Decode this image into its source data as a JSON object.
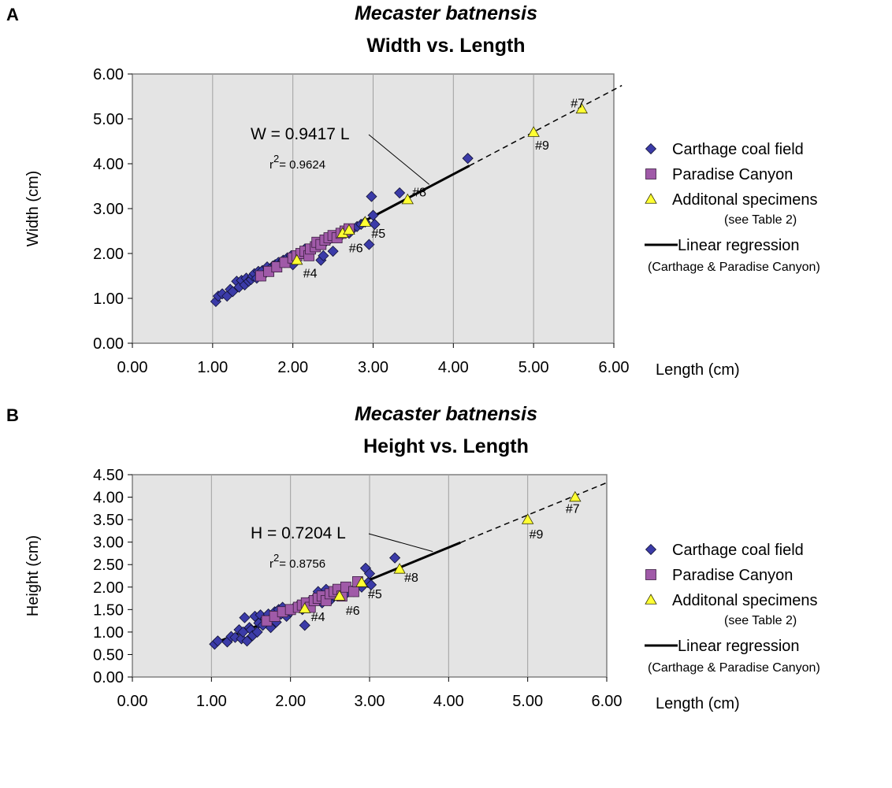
{
  "chart_data": [
    {
      "type": "scatter",
      "panel_label": "A",
      "title": "Mecaster batnensis",
      "subtitle": "Width vs. Length",
      "xlabel": "Length (cm)",
      "ylabel": "Width (cm)",
      "xlim": [
        0,
        6
      ],
      "ylim": [
        0,
        6
      ],
      "x_ticks": [
        "0.00",
        "1.00",
        "2.00",
        "3.00",
        "4.00",
        "5.00",
        "6.00"
      ],
      "y_ticks": [
        "0.00",
        "1.00",
        "2.00",
        "3.00",
        "4.00",
        "5.00",
        "6.00"
      ],
      "grid": "vertical",
      "legend_position": "right",
      "legend": {
        "items": [
          {
            "label": "Carthage coal field",
            "marker": "diamond",
            "color": "#3b3ba8"
          },
          {
            "label": "Paradise Canyon",
            "marker": "square",
            "color": "#a05aa8"
          },
          {
            "label": "Additonal specimens",
            "marker": "triangle",
            "color": "#ffff33"
          },
          {
            "label": "Linear regression",
            "marker": "line",
            "color": "#000000"
          }
        ],
        "note_additional": "(see Table 2)",
        "note_regression": "(Carthage & Paradise Canyon)"
      },
      "regression": {
        "equation": "W = 0.9417 L",
        "r2_prefix": "r",
        "r2_sup": "2",
        "r2_value": "= 0.9624",
        "slope": 0.9417,
        "solid_range": [
          1.05,
          4.2
        ],
        "dashed_range": [
          4.2,
          6.1
        ]
      },
      "series": [
        {
          "name": "Carthage coal field",
          "marker": "diamond",
          "color": "#3b3ba8",
          "x": [
            1.04,
            1.07,
            1.12,
            1.18,
            1.22,
            1.25,
            1.3,
            1.33,
            1.36,
            1.4,
            1.42,
            1.45,
            1.48,
            1.5,
            1.52,
            1.55,
            1.57,
            1.6,
            1.62,
            1.65,
            1.68,
            1.7,
            1.72,
            1.75,
            1.78,
            1.8,
            1.82,
            1.85,
            1.88,
            1.9,
            1.93,
            1.95,
            1.98,
            2.0,
            2.05,
            2.1,
            2.15,
            2.2,
            2.25,
            2.3,
            2.35,
            2.38,
            2.4,
            2.45,
            2.5,
            2.55,
            2.6,
            2.65,
            2.7,
            2.75,
            2.8,
            2.85,
            2.9,
            2.95,
            2.98,
            3.0,
            3.02,
            3.33,
            4.18
          ],
          "y": [
            0.93,
            1.05,
            1.1,
            1.05,
            1.2,
            1.15,
            1.38,
            1.25,
            1.4,
            1.3,
            1.45,
            1.38,
            1.42,
            1.5,
            1.55,
            1.45,
            1.6,
            1.5,
            1.62,
            1.55,
            1.7,
            1.6,
            1.65,
            1.72,
            1.75,
            1.7,
            1.8,
            1.78,
            1.85,
            1.8,
            1.9,
            1.82,
            1.95,
            1.75,
            1.9,
            2.0,
            2.1,
            2.05,
            2.15,
            2.2,
            1.85,
            1.95,
            2.25,
            2.3,
            2.05,
            2.35,
            2.4,
            2.5,
            2.45,
            2.55,
            2.6,
            2.65,
            2.7,
            2.2,
            3.27,
            2.85,
            2.65,
            3.35,
            4.12
          ]
        },
        {
          "name": "Paradise Canyon",
          "marker": "square",
          "color": "#a05aa8",
          "x": [
            1.6,
            1.7,
            1.8,
            1.9,
            2.0,
            2.05,
            2.1,
            2.15,
            2.2,
            2.22,
            2.28,
            2.3,
            2.35,
            2.4,
            2.45,
            2.5,
            2.55,
            2.6,
            2.65,
            2.7
          ],
          "y": [
            1.5,
            1.6,
            1.7,
            1.8,
            1.9,
            1.95,
            2.0,
            2.05,
            1.95,
            2.1,
            2.15,
            2.25,
            2.2,
            2.3,
            2.35,
            2.4,
            2.35,
            2.45,
            2.5,
            2.55
          ]
        },
        {
          "name": "Additonal specimens",
          "marker": "triangle",
          "color": "#ffff33",
          "x": [
            2.05,
            2.62,
            2.7,
            2.9,
            3.43,
            5.0,
            5.6
          ],
          "y": [
            1.85,
            2.45,
            2.52,
            2.7,
            3.2,
            4.7,
            5.22
          ],
          "labels": [
            "#4",
            "#6",
            "",
            "#5",
            "#8",
            "#9",
            "#7"
          ]
        }
      ]
    },
    {
      "type": "scatter",
      "panel_label": "B",
      "title": "Mecaster batnensis",
      "subtitle": "Height vs. Length",
      "xlabel": "Length (cm)",
      "ylabel": "Height (cm)",
      "xlim": [
        0,
        6
      ],
      "ylim": [
        0,
        4.5
      ],
      "x_ticks": [
        "0.00",
        "1.00",
        "2.00",
        "3.00",
        "4.00",
        "5.00",
        "6.00"
      ],
      "y_ticks": [
        "0.00",
        "0.50",
        "1.00",
        "1.50",
        "2.00",
        "2.50",
        "3.00",
        "3.50",
        "4.00",
        "4.50"
      ],
      "grid": "vertical",
      "legend_position": "right",
      "legend": {
        "items": [
          {
            "label": "Carthage coal field",
            "marker": "diamond",
            "color": "#3b3ba8"
          },
          {
            "label": "Paradise Canyon",
            "marker": "square",
            "color": "#a05aa8"
          },
          {
            "label": "Additonal specimens",
            "marker": "triangle",
            "color": "#ffff33"
          },
          {
            "label": "Linear regression",
            "marker": "line",
            "color": "#000000"
          }
        ],
        "note_additional": "(see Table 2)",
        "note_regression": "(Carthage & Paradise Canyon)"
      },
      "regression": {
        "equation": "H = 0.7204 L",
        "r2_prefix": "r",
        "r2_sup": "2",
        "r2_value": "= 0.8756",
        "slope": 0.7204,
        "solid_range": [
          1.05,
          4.15
        ],
        "dashed_range": [
          4.15,
          6.0
        ]
      },
      "series": [
        {
          "name": "Carthage coal field",
          "marker": "diamond",
          "color": "#3b3ba8",
          "x": [
            1.04,
            1.08,
            1.2,
            1.25,
            1.3,
            1.35,
            1.38,
            1.4,
            1.42,
            1.45,
            1.48,
            1.5,
            1.52,
            1.55,
            1.58,
            1.6,
            1.62,
            1.65,
            1.68,
            1.7,
            1.72,
            1.75,
            1.78,
            1.8,
            1.82,
            1.85,
            1.88,
            1.9,
            1.95,
            2.0,
            2.05,
            2.1,
            2.15,
            2.18,
            2.2,
            2.25,
            2.3,
            2.35,
            2.4,
            2.45,
            2.5,
            2.55,
            2.6,
            2.7,
            2.8,
            2.9,
            2.95,
            2.98,
            3.0,
            3.02,
            3.32
          ],
          "y": [
            0.73,
            0.8,
            0.78,
            0.9,
            0.88,
            1.05,
            0.85,
            1.0,
            1.32,
            0.8,
            1.1,
            1.05,
            0.92,
            1.35,
            1.0,
            1.2,
            1.38,
            1.15,
            1.3,
            1.25,
            1.4,
            1.1,
            1.35,
            1.45,
            1.22,
            1.5,
            1.4,
            1.55,
            1.35,
            1.45,
            1.55,
            1.6,
            1.5,
            1.15,
            1.62,
            1.7,
            1.75,
            1.9,
            1.65,
            1.95,
            1.7,
            1.8,
            1.85,
            1.85,
            1.9,
            2.0,
            2.42,
            2.1,
            2.3,
            2.05,
            2.65
          ]
        },
        {
          "name": "Paradise Canyon",
          "marker": "square",
          "color": "#a05aa8",
          "x": [
            1.7,
            1.8,
            1.9,
            2.0,
            2.1,
            2.15,
            2.2,
            2.25,
            2.3,
            2.35,
            2.4,
            2.45,
            2.5,
            2.55,
            2.6,
            2.65,
            2.7,
            2.8,
            2.85
          ],
          "y": [
            1.25,
            1.35,
            1.45,
            1.5,
            1.55,
            1.6,
            1.65,
            1.55,
            1.7,
            1.75,
            1.8,
            1.7,
            1.85,
            1.9,
            1.95,
            1.8,
            2.0,
            1.9,
            2.12
          ]
        },
        {
          "name": "Additonal specimens",
          "marker": "triangle",
          "color": "#ffff33",
          "x": [
            2.18,
            2.62,
            2.9,
            3.38,
            5.0,
            5.6
          ],
          "y": [
            1.52,
            1.8,
            2.1,
            2.4,
            3.5,
            4.0
          ],
          "labels": [
            "#4",
            "#6",
            "#5",
            "#8",
            "#9",
            "#7"
          ]
        }
      ]
    }
  ]
}
